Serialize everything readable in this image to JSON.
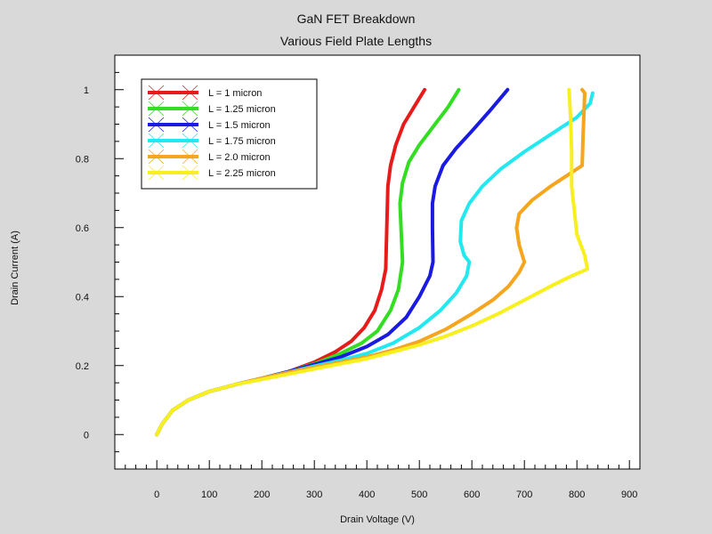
{
  "chart_data": {
    "type": "line",
    "title": "GaN FET Breakdown",
    "subtitle": "Various Field Plate Lengths",
    "xlabel": "Drain Voltage (V)",
    "ylabel": "Drain Current (A)",
    "xlim": [
      -80,
      920
    ],
    "ylim": [
      -0.1,
      1.1
    ],
    "xticks": [
      0,
      100,
      200,
      300,
      400,
      500,
      600,
      700,
      800,
      900
    ],
    "yticks": [
      0,
      0.2,
      0.4,
      0.6,
      0.8,
      1
    ],
    "ytick_labels": [
      "0",
      "0.2",
      "0.4",
      "0.6",
      "0.8",
      "1"
    ],
    "grid": false,
    "legend_position": "top-left",
    "series": [
      {
        "name": "L = 1 micron",
        "color": "#e81b1b",
        "x": [
          0,
          10,
          30,
          60,
          100,
          150,
          200,
          250,
          300,
          340,
          370,
          395,
          415,
          428,
          436,
          438,
          440,
          445,
          455,
          470,
          490,
          510
        ],
        "y": [
          0,
          0.03,
          0.07,
          0.1,
          0.125,
          0.145,
          0.163,
          0.182,
          0.21,
          0.24,
          0.27,
          0.31,
          0.36,
          0.42,
          0.48,
          0.6,
          0.72,
          0.78,
          0.84,
          0.9,
          0.95,
          1.0
        ]
      },
      {
        "name": "L = 1.25 micron",
        "color": "#33dd22",
        "x": [
          0,
          10,
          30,
          60,
          100,
          150,
          200,
          250,
          300,
          350,
          390,
          420,
          445,
          460,
          468,
          465,
          463,
          468,
          480,
          500,
          530,
          555,
          575
        ],
        "y": [
          0,
          0.03,
          0.07,
          0.1,
          0.125,
          0.145,
          0.163,
          0.182,
          0.205,
          0.235,
          0.265,
          0.3,
          0.36,
          0.42,
          0.5,
          0.6,
          0.67,
          0.73,
          0.79,
          0.84,
          0.9,
          0.95,
          1.0
        ]
      },
      {
        "name": "L = 1.5 micron",
        "color": "#1a1ae0",
        "x": [
          0,
          10,
          30,
          60,
          100,
          150,
          200,
          250,
          300,
          350,
          400,
          440,
          475,
          500,
          520,
          526,
          525,
          525,
          530,
          545,
          570,
          600,
          635,
          668
        ],
        "y": [
          0,
          0.03,
          0.07,
          0.1,
          0.125,
          0.145,
          0.163,
          0.182,
          0.203,
          0.225,
          0.255,
          0.29,
          0.34,
          0.4,
          0.46,
          0.5,
          0.6,
          0.67,
          0.72,
          0.78,
          0.83,
          0.88,
          0.94,
          1.0
        ]
      },
      {
        "name": "L = 1.75 micron",
        "color": "#22e8f0",
        "x": [
          0,
          10,
          30,
          60,
          100,
          150,
          200,
          250,
          300,
          350,
          400,
          450,
          500,
          540,
          570,
          590,
          595,
          585,
          578,
          580,
          595,
          620,
          655,
          700,
          750,
          800,
          825,
          830
        ],
        "y": [
          0,
          0.03,
          0.07,
          0.1,
          0.125,
          0.145,
          0.163,
          0.18,
          0.198,
          0.215,
          0.235,
          0.265,
          0.31,
          0.36,
          0.41,
          0.46,
          0.5,
          0.52,
          0.56,
          0.62,
          0.67,
          0.72,
          0.77,
          0.82,
          0.87,
          0.92,
          0.96,
          0.99
        ]
      },
      {
        "name": "L = 2.0 micron",
        "color": "#f5a51e",
        "x": [
          0,
          10,
          30,
          60,
          100,
          150,
          200,
          250,
          300,
          350,
          400,
          450,
          500,
          550,
          600,
          640,
          670,
          690,
          700,
          690,
          685,
          690,
          715,
          750,
          790,
          810,
          812,
          815,
          810
        ],
        "y": [
          0,
          0.03,
          0.07,
          0.1,
          0.125,
          0.145,
          0.163,
          0.18,
          0.195,
          0.21,
          0.225,
          0.245,
          0.27,
          0.305,
          0.35,
          0.39,
          0.43,
          0.47,
          0.5,
          0.55,
          0.6,
          0.64,
          0.68,
          0.72,
          0.76,
          0.78,
          0.88,
          0.99,
          1.0
        ]
      },
      {
        "name": "L = 2.25 micron",
        "color": "#f7f01e",
        "x": [
          0,
          10,
          30,
          60,
          100,
          150,
          200,
          250,
          300,
          350,
          400,
          450,
          500,
          550,
          600,
          650,
          700,
          750,
          790,
          820,
          815,
          800,
          795,
          790,
          790,
          788,
          785
        ],
        "y": [
          0,
          0.03,
          0.07,
          0.1,
          0.125,
          0.145,
          0.16,
          0.175,
          0.19,
          0.205,
          0.22,
          0.24,
          0.26,
          0.285,
          0.315,
          0.35,
          0.39,
          0.43,
          0.46,
          0.48,
          0.52,
          0.58,
          0.65,
          0.72,
          0.82,
          0.92,
          1.0
        ]
      }
    ]
  }
}
